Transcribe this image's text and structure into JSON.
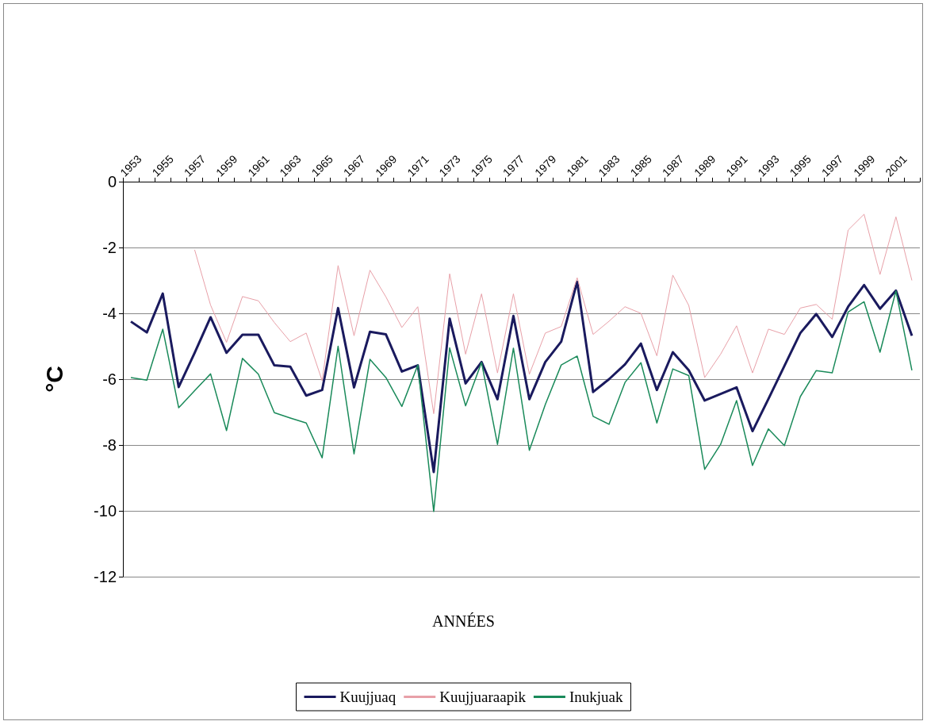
{
  "chart_data": {
    "type": "line",
    "xlabel": "ANNÉES",
    "ylabel": "°C",
    "categories": [
      "1953",
      null,
      "1955",
      null,
      "1957",
      null,
      "1959",
      null,
      "1961",
      null,
      "1963",
      null,
      "1965",
      null,
      "1967",
      null,
      "1969",
      null,
      "1971",
      null,
      "1973",
      null,
      "1975",
      null,
      "1977",
      null,
      "1979",
      null,
      "1981",
      null,
      "1983",
      null,
      "1985",
      null,
      "1987",
      null,
      "1989",
      null,
      "1991",
      null,
      "1993",
      null,
      "1995",
      null,
      "1997",
      null,
      "1999",
      null,
      "2001",
      null
    ],
    "series": [
      {
        "name": "Kuujjuaq",
        "color": "#1a1a5e",
        "values": [
          -4.25,
          -4.58,
          -3.4,
          -6.24,
          -5.2,
          -4.12,
          -5.2,
          -4.65,
          -4.65,
          -5.58,
          -5.62,
          -6.5,
          -6.33,
          -3.84,
          -6.25,
          -4.56,
          -4.64,
          -5.77,
          -5.58,
          -8.82,
          -4.16,
          -6.13,
          -5.48,
          -6.61,
          -4.08,
          -6.61,
          -5.48,
          -4.86,
          -3.04,
          -6.39,
          -6.0,
          -5.55,
          -4.92,
          -6.33,
          -5.18,
          -5.73,
          -6.65,
          -6.45,
          -6.25,
          -7.58,
          -6.6,
          -5.6,
          -4.6,
          -4.02,
          -4.72,
          -3.8,
          -3.14,
          -3.86,
          -3.31,
          -4.68
        ]
      },
      {
        "name": "Kuujjuaraapik",
        "color": "#e8a0a8",
        "values": [
          null,
          null,
          null,
          null,
          -2.07,
          -3.75,
          -4.88,
          -3.49,
          -3.62,
          -4.28,
          -4.86,
          -4.6,
          -6.05,
          -2.55,
          -4.68,
          -2.69,
          -3.5,
          -4.43,
          -3.8,
          -7.05,
          -2.8,
          -5.24,
          -3.41,
          -5.81,
          -3.41,
          -5.85,
          -4.6,
          -4.4,
          -2.92,
          -4.64,
          -4.24,
          -3.8,
          -4.0,
          -5.29,
          -2.84,
          -3.76,
          -5.95,
          -5.24,
          -4.38,
          -5.81,
          -4.48,
          -4.64,
          -3.84,
          -3.73,
          -4.18,
          -1.47,
          -0.99,
          -2.82,
          -1.07,
          -3.0
        ]
      },
      {
        "name": "Inukjuak",
        "color": "#1a8a5a",
        "values": [
          -5.95,
          -6.03,
          -4.48,
          -6.87,
          -6.35,
          -5.84,
          -7.56,
          -5.37,
          -5.85,
          -7.02,
          -7.18,
          -7.33,
          -8.39,
          -5.0,
          -8.27,
          -5.4,
          -5.95,
          -6.83,
          -5.57,
          -10.02,
          -5.05,
          -6.81,
          -5.49,
          -7.98,
          -5.06,
          -8.16,
          -6.77,
          -5.57,
          -5.3,
          -7.13,
          -7.37,
          -6.1,
          -5.5,
          -7.33,
          -5.69,
          -5.89,
          -8.74,
          -7.98,
          -6.65,
          -8.62,
          -7.51,
          -8.02,
          -6.53,
          -5.74,
          -5.81,
          -3.96,
          -3.65,
          -5.18,
          -3.32,
          -5.73
        ]
      }
    ],
    "ylim": [
      -12,
      0
    ],
    "yticks": [
      -12,
      -10,
      -8,
      -6,
      -4,
      -2,
      0
    ],
    "grid": "y",
    "legend": "bottom",
    "marker": "none",
    "line_style": "solid"
  }
}
